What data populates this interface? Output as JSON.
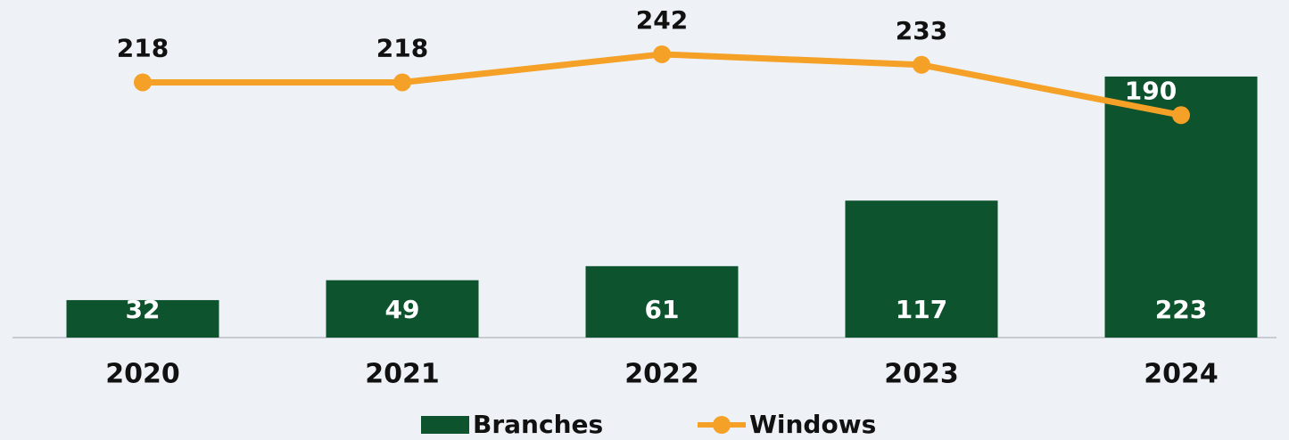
{
  "chart_data": {
    "type": "bar_line",
    "categories": [
      "2020",
      "2021",
      "2022",
      "2023",
      "2024"
    ],
    "series": [
      {
        "name": "Branches",
        "type": "bar",
        "color": "#0d532d",
        "values": [
          32,
          49,
          61,
          117,
          223
        ]
      },
      {
        "name": "Windows",
        "type": "line",
        "axis": "y2",
        "color": "#f5a128",
        "values": [
          218,
          218,
          242,
          233,
          190
        ]
      }
    ],
    "ylim": [
      0,
      280
    ],
    "y2lim": [
      0,
      280
    ],
    "legend": "bottom"
  }
}
